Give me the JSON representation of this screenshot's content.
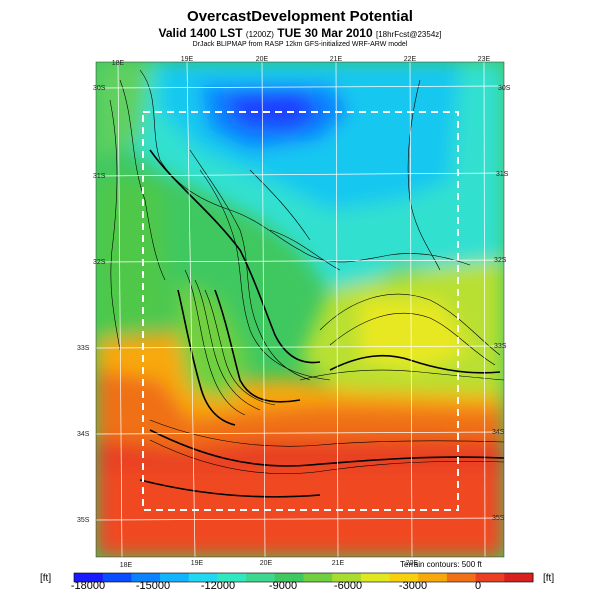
{
  "header": {
    "title": "OvercastDevelopment Potential",
    "valid_prefix": "Valid 1400 LST",
    "valid_z": "(1200Z)",
    "valid_date": "TUE 30 Mar 2010",
    "valid_run": "[18hrFcst@2354z]",
    "credit": "DrJack BLIPMAP from RASP 12km GFS-initialized WRF-ARW model"
  },
  "map": {
    "lon_labels_top": [
      "18E",
      "19E",
      "20E",
      "21E",
      "22E",
      "23E"
    ],
    "lon_labels_bottom": [
      "18E",
      "19E",
      "20E",
      "21E",
      "22E"
    ],
    "lat_labels_left": [
      "30S",
      "31S",
      "32S",
      "33S",
      "34S",
      "35S"
    ],
    "lat_labels_right": [
      "30S",
      "31S",
      "32S",
      "33S",
      "34S",
      "35S"
    ],
    "terrain_note": "Terrain contours: 500 ft"
  },
  "colorbar": {
    "unit_left": "[ft]",
    "unit_right": "[ft]",
    "ticks": [
      "-18000",
      "-15000",
      "-12000",
      "-9000",
      "-6000",
      "-3000",
      "0"
    ],
    "colors": [
      "#1a1aff",
      "#0a4cff",
      "#0d82ff",
      "#12b4ff",
      "#20d8f0",
      "#30e8c0",
      "#3cd890",
      "#40c860",
      "#70d040",
      "#a8dc30",
      "#e0e820",
      "#f8d010",
      "#f8a808",
      "#f07018",
      "#e84020",
      "#d82020"
    ]
  }
}
